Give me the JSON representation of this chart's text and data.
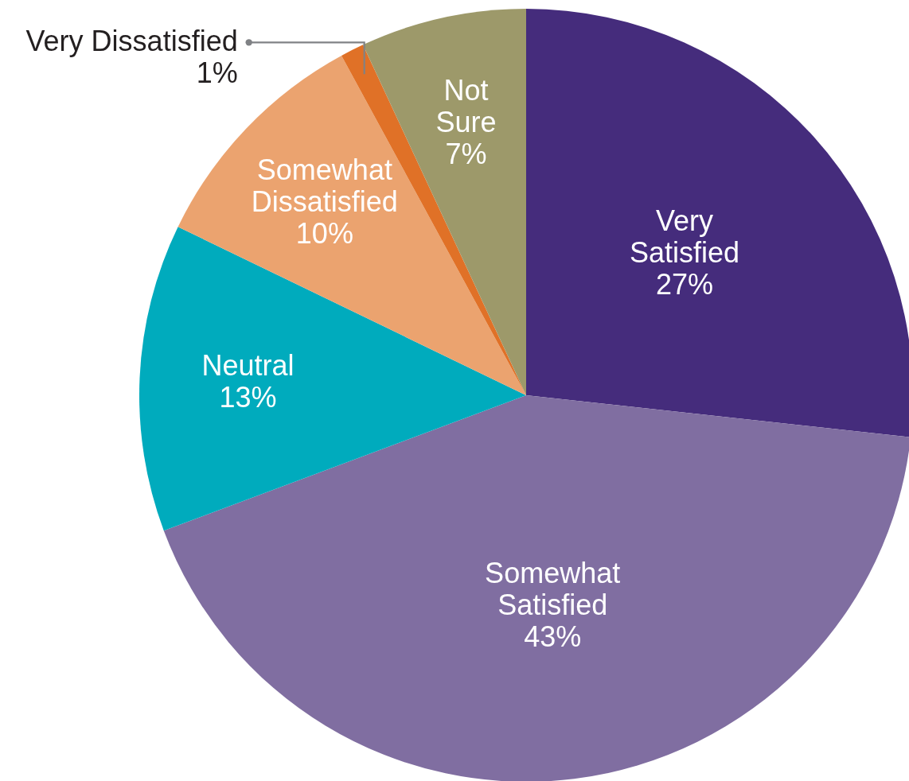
{
  "chart_data": {
    "type": "pie",
    "categories": [
      "Very Satisfied",
      "Somewhat Satisfied",
      "Neutral",
      "Somewhat Dissatisfied",
      "Very Dissatisfied",
      "Not Sure"
    ],
    "values": [
      27,
      43,
      13,
      10,
      1,
      7
    ],
    "value_labels": [
      "27%",
      "43%",
      "13%",
      "10%",
      "1%",
      "7%"
    ],
    "colors": [
      "#452c7c",
      "#806ea1",
      "#00abbd",
      "#eba36f",
      "#e07127",
      "#9d996a"
    ]
  }
}
